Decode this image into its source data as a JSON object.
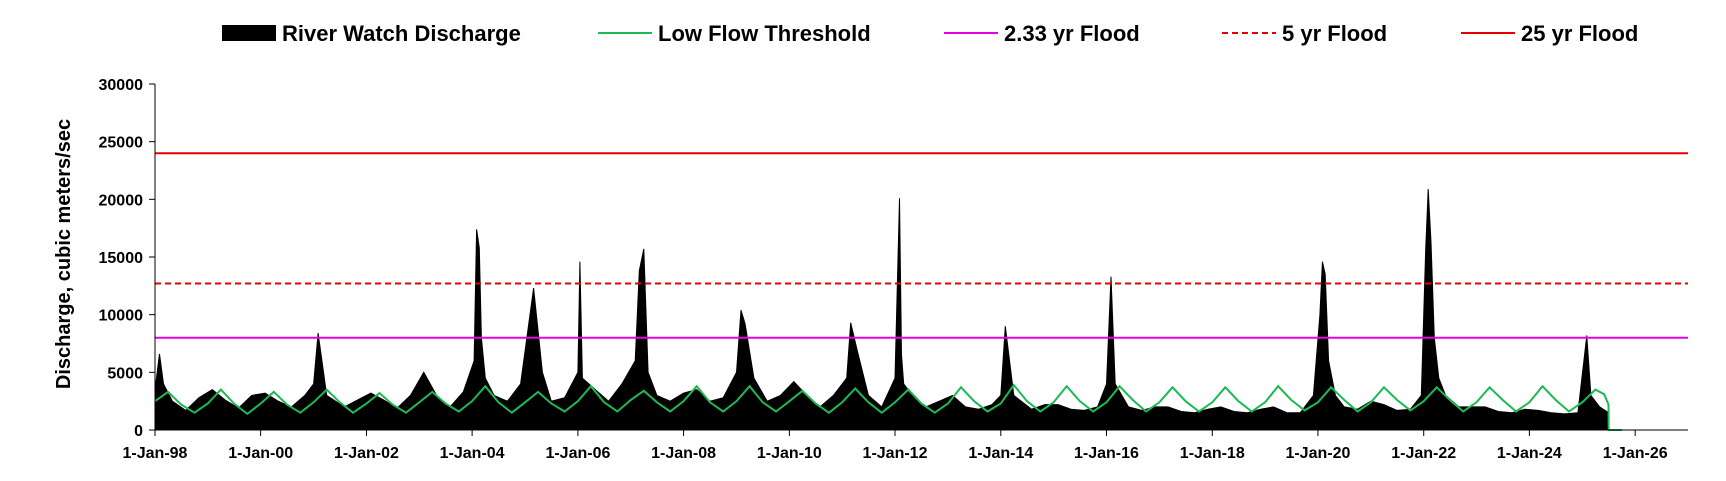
{
  "chart_data": {
    "type": "area",
    "title": "",
    "xlabel": "",
    "ylabel": "Discharge, cubic meters/sec",
    "ylim": [
      0,
      30000
    ],
    "xlim": [
      "1998-01-01",
      "2027-01-01"
    ],
    "grid": false,
    "legend_position": "top",
    "yticks": [
      0,
      5000,
      10000,
      15000,
      20000,
      25000,
      30000
    ],
    "yticklabels": [
      "0",
      "5000",
      "10000",
      "15000",
      "20000",
      "25000",
      "30000"
    ],
    "xticks": [
      "1998-01-01",
      "2000-01-01",
      "2002-01-01",
      "2004-01-01",
      "2006-01-01",
      "2008-01-01",
      "2010-01-01",
      "2012-01-01",
      "2014-01-01",
      "2016-01-01",
      "2018-01-01",
      "2020-01-01",
      "2022-01-01",
      "2024-01-01",
      "2026-01-01"
    ],
    "xticklabels": [
      "1-Jan-98",
      "1-Jan-00",
      "1-Jan-02",
      "1-Jan-04",
      "1-Jan-06",
      "1-Jan-08",
      "1-Jan-10",
      "1-Jan-12",
      "1-Jan-14",
      "1-Jan-16",
      "1-Jan-18",
      "1-Jan-20",
      "1-Jan-22",
      "1-Jan-24",
      "1-Jan-26"
    ],
    "thresholds": [
      {
        "name": "2.33 yr Flood",
        "value": 8000,
        "color": "#e600e6",
        "dash": "solid"
      },
      {
        "name": "5 yr Flood",
        "value": 12700,
        "color": "#e60000",
        "dash": "dashed"
      },
      {
        "name": "25 yr Flood",
        "value": 24000,
        "color": "#e60000",
        "dash": "solid"
      }
    ],
    "series": [
      {
        "name": "River Watch Discharge",
        "type": "area",
        "color": "#000000",
        "x": [
          "1998-01-01",
          "1998-02-01",
          "1998-03-01",
          "1998-05-01",
          "1998-08-01",
          "1998-11-01",
          "1999-02-01",
          "1999-05-01",
          "1999-08-01",
          "1999-11-01",
          "2000-02-01",
          "2000-05-01",
          "2000-08-01",
          "2000-11-01",
          "2001-01-01",
          "2001-02-01",
          "2001-04-01",
          "2001-08-01",
          "2001-11-01",
          "2002-02-01",
          "2002-05-01",
          "2002-08-01",
          "2002-11-01",
          "2003-02-01",
          "2003-05-01",
          "2003-08-01",
          "2003-11-01",
          "2004-01-15",
          "2004-02-01",
          "2004-02-20",
          "2004-03-05",
          "2004-04-01",
          "2004-06-01",
          "2004-09-01",
          "2004-12-01",
          "2005-03-01",
          "2005-05-01",
          "2005-07-01",
          "2005-10-01",
          "2006-01-01",
          "2006-01-15",
          "2006-02-01",
          "2006-05-01",
          "2006-08-01",
          "2006-11-01",
          "2007-02-01",
          "2007-03-01",
          "2007-04-01",
          "2007-05-01",
          "2007-07-01",
          "2007-10-01",
          "2008-01-01",
          "2008-04-01",
          "2008-07-01",
          "2008-10-01",
          "2009-01-01",
          "2009-02-01",
          "2009-03-01",
          "2009-05-01",
          "2009-08-01",
          "2009-11-01",
          "2010-02-01",
          "2010-05-01",
          "2010-08-01",
          "2010-11-01",
          "2011-02-01",
          "2011-03-01",
          "2011-04-15",
          "2011-07-01",
          "2011-10-01",
          "2012-01-01",
          "2012-02-01",
          "2012-02-15",
          "2012-03-01",
          "2012-05-01",
          "2012-08-01",
          "2012-11-01",
          "2013-02-01",
          "2013-05-01",
          "2013-08-01",
          "2013-11-01",
          "2014-01-01",
          "2014-02-01",
          "2014-04-01",
          "2014-08-01",
          "2014-11-01",
          "2015-02-01",
          "2015-05-01",
          "2015-08-01",
          "2015-11-01",
          "2016-01-01",
          "2016-02-01",
          "2016-03-01",
          "2016-06-01",
          "2016-09-01",
          "2016-12-01",
          "2017-03-01",
          "2017-06-01",
          "2017-09-01",
          "2017-12-01",
          "2018-03-01",
          "2018-06-01",
          "2018-09-01",
          "2018-12-01",
          "2019-03-01",
          "2019-06-01",
          "2019-09-01",
          "2019-12-01",
          "2020-01-15",
          "2020-02-01",
          "2020-02-20",
          "2020-03-15",
          "2020-05-01",
          "2020-07-01",
          "2020-10-01",
          "2021-01-01",
          "2021-04-01",
          "2021-07-01",
          "2021-10-01",
          "2021-12-15",
          "2022-01-15",
          "2022-02-01",
          "2022-02-20",
          "2022-03-15",
          "2022-04-15",
          "2022-06-01",
          "2022-09-01",
          "2022-12-01",
          "2023-03-01",
          "2023-06-01",
          "2023-09-01",
          "2023-12-01",
          "2024-03-01",
          "2024-06-01",
          "2024-09-01",
          "2024-12-01",
          "2025-02-01",
          "2025-03-01",
          "2025-05-01",
          "2025-07-01",
          "2025-07-02"
        ],
        "values": [
          3500,
          6600,
          4000,
          2500,
          1700,
          2800,
          3500,
          2600,
          1900,
          3000,
          3200,
          2500,
          2000,
          3000,
          4000,
          8400,
          3000,
          2000,
          2600,
          3200,
          2600,
          1900,
          3000,
          5000,
          3000,
          2000,
          3300,
          6000,
          17400,
          15800,
          8000,
          4500,
          3000,
          2500,
          4000,
          12300,
          5000,
          2500,
          2800,
          5000,
          14600,
          4500,
          3500,
          2500,
          4000,
          6000,
          13800,
          15700,
          5000,
          3000,
          2500,
          3200,
          3500,
          2500,
          2800,
          5000,
          10400,
          9200,
          4500,
          2500,
          3000,
          4200,
          3000,
          2000,
          3000,
          4500,
          9300,
          6900,
          3000,
          2000,
          4500,
          20100,
          6500,
          4000,
          3000,
          2000,
          2500,
          3000,
          2000,
          1800,
          2200,
          3000,
          9000,
          3000,
          1800,
          2200,
          2200,
          1800,
          1700,
          2000,
          4000,
          13300,
          4000,
          2000,
          1700,
          2000,
          2000,
          1600,
          1500,
          1800,
          2000,
          1600,
          1500,
          1800,
          2000,
          1500,
          1500,
          3000,
          10000,
          14600,
          13500,
          6000,
          3000,
          2000,
          1800,
          2500,
          2200,
          1700,
          1800,
          3000,
          15700,
          20900,
          16300,
          8000,
          4500,
          3000,
          2000,
          2000,
          2000,
          1600,
          1500,
          1800,
          1700,
          1500,
          1400,
          1500,
          8200,
          3000,
          2000,
          1500,
          0
        ]
      },
      {
        "name": "Low Flow Threshold",
        "type": "line",
        "color": "#1db954",
        "x": [
          "1998-01-01",
          "1998-04-01",
          "1998-07-01",
          "1998-10-01",
          "1999-01-01",
          "1999-04-01",
          "1999-07-01",
          "1999-10-01",
          "2000-01-01",
          "2000-04-01",
          "2000-07-01",
          "2000-10-01",
          "2001-01-01",
          "2001-04-01",
          "2001-07-01",
          "2001-10-01",
          "2002-01-01",
          "2002-04-01",
          "2002-07-01",
          "2002-10-01",
          "2003-01-01",
          "2003-04-01",
          "2003-07-01",
          "2003-10-01",
          "2004-01-01",
          "2004-04-01",
          "2004-07-01",
          "2004-10-01",
          "2005-01-01",
          "2005-04-01",
          "2005-07-01",
          "2005-10-01",
          "2006-01-01",
          "2006-04-01",
          "2006-07-01",
          "2006-10-01",
          "2007-01-01",
          "2007-04-01",
          "2007-07-01",
          "2007-10-01",
          "2008-01-01",
          "2008-04-01",
          "2008-07-01",
          "2008-10-01",
          "2009-01-01",
          "2009-04-01",
          "2009-07-01",
          "2009-10-01",
          "2010-01-01",
          "2010-04-01",
          "2010-07-01",
          "2010-10-01",
          "2011-01-01",
          "2011-04-01",
          "2011-07-01",
          "2011-10-01",
          "2012-01-01",
          "2012-04-01",
          "2012-07-01",
          "2012-10-01",
          "2013-01-01",
          "2013-04-01",
          "2013-07-01",
          "2013-10-01",
          "2014-01-01",
          "2014-04-01",
          "2014-07-01",
          "2014-10-01",
          "2015-01-01",
          "2015-04-01",
          "2015-07-01",
          "2015-10-01",
          "2016-01-01",
          "2016-04-01",
          "2016-07-01",
          "2016-10-01",
          "2017-01-01",
          "2017-04-01",
          "2017-07-01",
          "2017-10-01",
          "2018-01-01",
          "2018-04-01",
          "2018-07-01",
          "2018-10-01",
          "2019-01-01",
          "2019-04-01",
          "2019-07-01",
          "2019-10-01",
          "2020-01-01",
          "2020-04-01",
          "2020-07-01",
          "2020-10-01",
          "2021-01-01",
          "2021-04-01",
          "2021-07-01",
          "2021-10-01",
          "2022-01-01",
          "2022-04-01",
          "2022-07-01",
          "2022-10-01",
          "2023-01-01",
          "2023-04-01",
          "2023-07-01",
          "2023-10-01",
          "2024-01-01",
          "2024-04-01",
          "2024-07-01",
          "2024-10-01",
          "2025-01-01",
          "2025-04-01",
          "2025-06-01",
          "2025-07-01",
          "2025-07-02",
          "2025-10-01"
        ],
        "values": [
          2500,
          3300,
          2200,
          1500,
          2300,
          3500,
          2300,
          1400,
          2300,
          3300,
          2200,
          1500,
          2400,
          3500,
          2400,
          1500,
          2300,
          3200,
          2200,
          1500,
          2400,
          3300,
          2300,
          1600,
          2500,
          3800,
          2400,
          1500,
          2400,
          3300,
          2300,
          1600,
          2500,
          3800,
          2400,
          1600,
          2600,
          3400,
          2400,
          1600,
          2500,
          3800,
          2400,
          1600,
          2500,
          3800,
          2400,
          1600,
          2500,
          3400,
          2300,
          1500,
          2400,
          3600,
          2400,
          1500,
          2400,
          3500,
          2300,
          1500,
          2300,
          3700,
          2500,
          1600,
          2300,
          3900,
          2500,
          1600,
          2400,
          3800,
          2500,
          1600,
          2400,
          3800,
          2600,
          1600,
          2400,
          3700,
          2500,
          1600,
          2400,
          3700,
          2500,
          1600,
          2400,
          3800,
          2600,
          1700,
          2400,
          3700,
          2600,
          1600,
          2400,
          3700,
          2600,
          1700,
          2500,
          3700,
          2600,
          1600,
          2400,
          3700,
          2600,
          1600,
          2400,
          3800,
          2600,
          1600,
          2400,
          3500,
          3100,
          2200,
          0,
          0
        ]
      }
    ],
    "legend": [
      "River Watch Discharge",
      "Low Flow Threshold",
      "2.33 yr Flood",
      "5 yr Flood",
      "25 yr Flood"
    ]
  }
}
